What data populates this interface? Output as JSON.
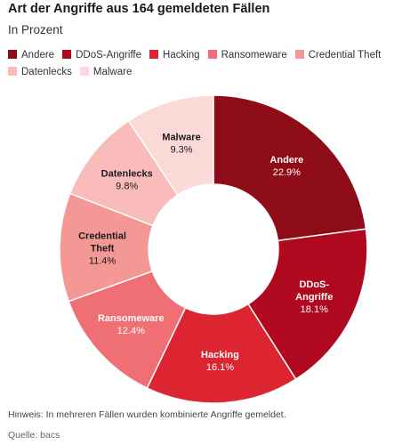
{
  "title": "Art der Angriffe aus 164 gemeldeten Fällen",
  "subtitle": "In Prozent",
  "note": "Hinweis: In mehreren Fällen wurden kombinierte Angriffe gemeldet.",
  "source": "Quelle: bacs",
  "chart_data": {
    "type": "pie",
    "donut": true,
    "legend_position": "top",
    "title": "Art der Angriffe aus 164 gemeldeten Fällen",
    "subtitle": "In Prozent",
    "categories": [
      "Andere",
      "DDoS-Angriffe",
      "Hacking",
      "Ransomeware",
      "Credential Theft",
      "Datenlecks",
      "Malware"
    ],
    "values": [
      22.9,
      18.1,
      16.1,
      12.4,
      11.4,
      9.8,
      9.3
    ],
    "value_labels": [
      "22.9%",
      "18.1%",
      "16.1%",
      "12.4%",
      "11.4%",
      "9.8%",
      "9.3%"
    ],
    "slice_label_lines": [
      [
        "Andere"
      ],
      [
        "DDoS-",
        "Angriffe"
      ],
      [
        "Hacking"
      ],
      [
        "Ransomeware"
      ],
      [
        "Credential",
        "Theft"
      ],
      [
        "Datenlecks"
      ],
      [
        "Malware"
      ]
    ],
    "colors": [
      "#8e0c18",
      "#b0081e",
      "#dc2531",
      "#ef6f74",
      "#f49896",
      "#f9bcbb",
      "#fbd9d6"
    ],
    "label_colors": [
      "#ffffff",
      "#ffffff",
      "#ffffff",
      "#ffffff",
      "#1a1a1a",
      "#1a1a1a",
      "#1a1a1a"
    ]
  }
}
